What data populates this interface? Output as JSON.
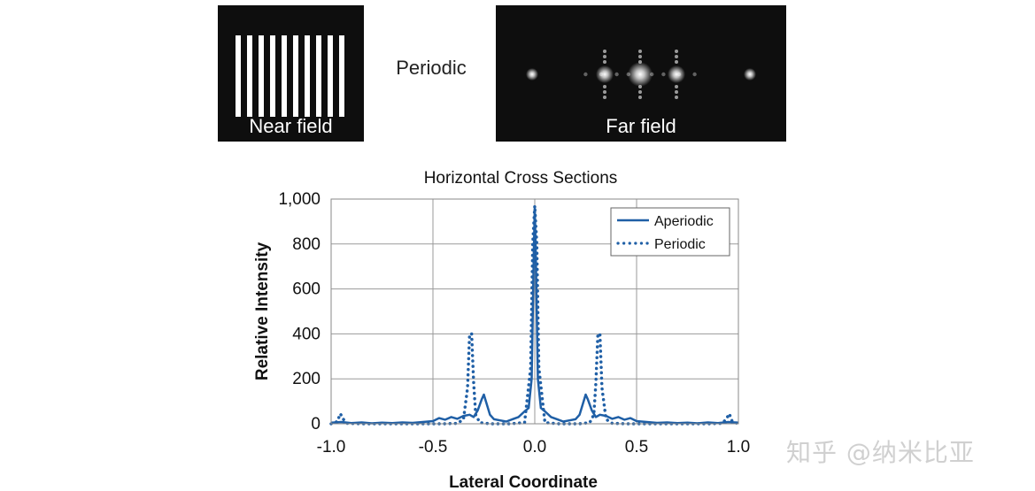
{
  "top_panels": {
    "near_field_label": "Near field",
    "middle_label": "Periodic",
    "far_field_label": "Far field"
  },
  "watermark": "知乎 @纳米比亚",
  "colors": {
    "series": "#1f5fa6",
    "panel_bg": "#0e0e0e",
    "grid": "#9a9a9a"
  },
  "chart_data": {
    "type": "line",
    "title": "Horizontal Cross  Sections",
    "xlabel": "Lateral Coordinate",
    "ylabel": "Relative Intensity",
    "xlim": [
      -1.0,
      1.0
    ],
    "ylim": [
      0,
      1000
    ],
    "x_ticks": [
      "-1.0",
      "-0.5",
      "0.0",
      "0.5",
      "1.0"
    ],
    "y_ticks": [
      "0",
      "200",
      "400",
      "600",
      "800",
      "1,000"
    ],
    "grid": true,
    "legend_position": "top-right",
    "series": [
      {
        "name": "Aperiodic",
        "style": "solid",
        "x": [
          -1.0,
          -0.95,
          -0.9,
          -0.85,
          -0.8,
          -0.75,
          -0.7,
          -0.65,
          -0.6,
          -0.55,
          -0.5,
          -0.47,
          -0.44,
          -0.41,
          -0.38,
          -0.35,
          -0.32,
          -0.3,
          -0.28,
          -0.26,
          -0.25,
          -0.24,
          -0.22,
          -0.2,
          -0.17,
          -0.14,
          -0.11,
          -0.08,
          -0.05,
          -0.03,
          -0.015,
          -0.005,
          0.0,
          0.005,
          0.015,
          0.03,
          0.05,
          0.08,
          0.11,
          0.14,
          0.17,
          0.2,
          0.22,
          0.24,
          0.25,
          0.26,
          0.28,
          0.3,
          0.32,
          0.35,
          0.38,
          0.41,
          0.44,
          0.47,
          0.5,
          0.55,
          0.6,
          0.65,
          0.7,
          0.75,
          0.8,
          0.85,
          0.9,
          0.95,
          1.0
        ],
        "y": [
          5,
          8,
          3,
          6,
          2,
          5,
          3,
          6,
          4,
          8,
          12,
          25,
          18,
          30,
          22,
          35,
          40,
          30,
          60,
          110,
          130,
          100,
          40,
          20,
          15,
          10,
          20,
          30,
          55,
          70,
          200,
          760,
          960,
          760,
          200,
          70,
          55,
          30,
          20,
          10,
          15,
          20,
          40,
          100,
          130,
          110,
          60,
          30,
          40,
          35,
          22,
          30,
          18,
          25,
          12,
          8,
          4,
          6,
          3,
          5,
          2,
          6,
          3,
          8,
          5
        ]
      },
      {
        "name": "Periodic",
        "style": "dotted",
        "x": [
          -1.0,
          -0.97,
          -0.955,
          -0.94,
          -0.92,
          -0.85,
          -0.7,
          -0.55,
          -0.45,
          -0.38,
          -0.35,
          -0.33,
          -0.32,
          -0.31,
          -0.3,
          -0.29,
          -0.27,
          -0.22,
          -0.12,
          -0.05,
          -0.02,
          -0.01,
          0.0,
          0.01,
          0.02,
          0.05,
          0.12,
          0.22,
          0.27,
          0.29,
          0.3,
          0.31,
          0.32,
          0.33,
          0.35,
          0.38,
          0.45,
          0.55,
          0.7,
          0.85,
          0.92,
          0.94,
          0.955,
          0.97,
          1.0
        ],
        "y": [
          0,
          10,
          45,
          20,
          2,
          0,
          0,
          0,
          0,
          2,
          20,
          160,
          400,
          400,
          180,
          40,
          5,
          0,
          0,
          5,
          250,
          800,
          970,
          800,
          250,
          5,
          0,
          0,
          5,
          40,
          180,
          400,
          400,
          160,
          20,
          2,
          0,
          0,
          0,
          0,
          2,
          20,
          45,
          10,
          0
        ]
      }
    ]
  }
}
